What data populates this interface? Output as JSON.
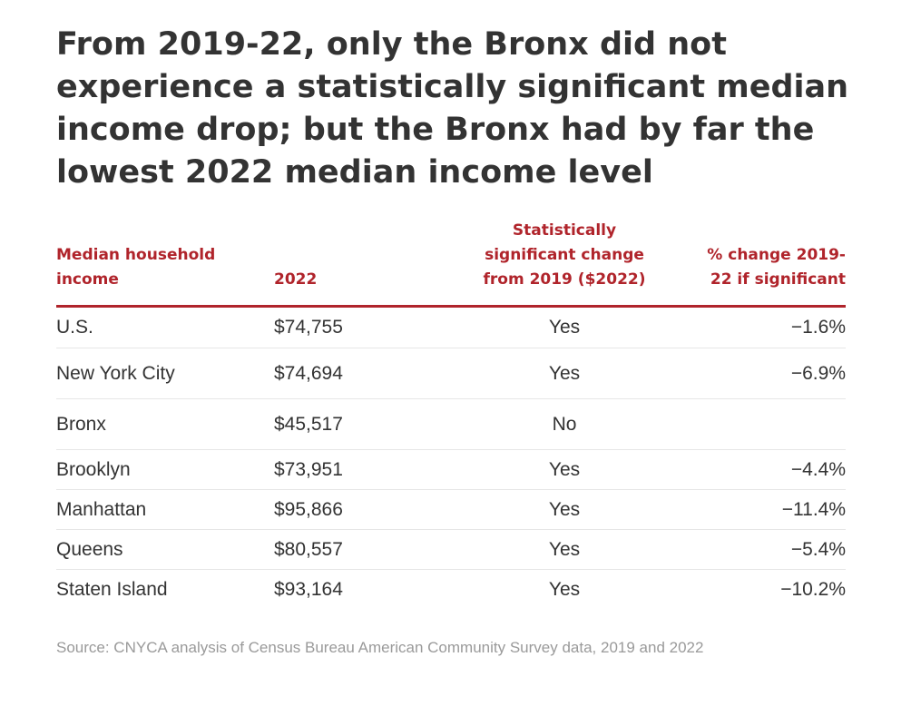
{
  "title": "From 2019-22, only the Bronx did not experience a statistically significant median income drop; but the Bronx had by far the lowest 2022 median income level",
  "header": {
    "col1_line1": "Median household",
    "col1_line2": "income",
    "col2": "2022",
    "col3_line1": "Statistically",
    "col3_line2": "significant change",
    "col3_line3": "from 2019 ($2022)",
    "col4_line1": "% change 2019-",
    "col4_line2": "22 if significant"
  },
  "rows": [
    {
      "area": "U.S.",
      "income_2022": "$74,755",
      "significant": "Yes",
      "pct_change": "−1.6%"
    },
    {
      "area": "New York City",
      "income_2022": "$74,694",
      "significant": "Yes",
      "pct_change": "−6.9%"
    },
    {
      "area": "Bronx",
      "income_2022": "$45,517",
      "significant": "No",
      "pct_change": ""
    },
    {
      "area": "Brooklyn",
      "income_2022": "$73,951",
      "significant": "Yes",
      "pct_change": "−4.4%"
    },
    {
      "area": "Manhattan",
      "income_2022": "$95,866",
      "significant": "Yes",
      "pct_change": "−11.4%"
    },
    {
      "area": "Queens",
      "income_2022": "$80,557",
      "significant": "Yes",
      "pct_change": "−5.4%"
    },
    {
      "area": "Staten Island",
      "income_2022": "$93,164",
      "significant": "Yes",
      "pct_change": "−10.2%"
    }
  ],
  "source": "Source: CNYCA analysis of Census Bureau American Community Survey data, 2019 and 2022",
  "colors": {
    "accent": "#b0242b",
    "text": "#333333",
    "source_text": "#9a9a9a"
  },
  "chart_data": {
    "type": "table",
    "title": "From 2019-22, only the Bronx did not experience a statistically significant median income drop; but the Bronx had by far the lowest 2022 median income level",
    "columns": [
      "Median household income",
      "2022",
      "Statistically significant change from 2019 ($2022)",
      "% change 2019-22 if significant"
    ],
    "rows": [
      [
        "U.S.",
        74755,
        "Yes",
        -1.6
      ],
      [
        "New York City",
        74694,
        "Yes",
        -6.9
      ],
      [
        "Bronx",
        45517,
        "No",
        null
      ],
      [
        "Brooklyn",
        73951,
        "Yes",
        -4.4
      ],
      [
        "Manhattan",
        95866,
        "Yes",
        -11.4
      ],
      [
        "Queens",
        80557,
        "Yes",
        -5.4
      ],
      [
        "Staten Island",
        93164,
        "Yes",
        -10.2
      ]
    ]
  }
}
